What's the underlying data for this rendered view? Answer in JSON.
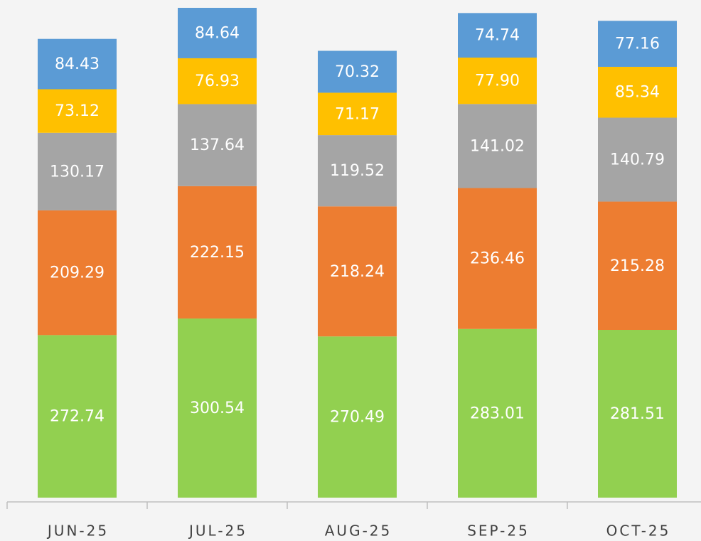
{
  "chart_data": {
    "type": "stacked_bar",
    "categories": [
      "JUN-25",
      "JUL-25",
      "AUG-25",
      "SEP-25",
      "OCT-25"
    ],
    "series": [
      {
        "color": "#92d050",
        "values": [
          272.74,
          300.54,
          270.49,
          283.01,
          281.51
        ],
        "value_labels": [
          "272.74",
          "300.54",
          "270.49",
          "283.01",
          "281.51"
        ]
      },
      {
        "color": "#ed7d31",
        "values": [
          209.29,
          222.15,
          218.24,
          236.46,
          215.28
        ],
        "value_labels": [
          "209.29",
          "222.15",
          "218.24",
          "236.46",
          "215.28"
        ]
      },
      {
        "color": "#a5a5a5",
        "values": [
          130.17,
          137.64,
          119.52,
          141.02,
          140.79
        ],
        "value_labels": [
          "130.17",
          "137.64",
          "119.52",
          "141.02",
          "140.79"
        ]
      },
      {
        "color": "#ffc000",
        "values": [
          73.12,
          76.93,
          71.17,
          77.9,
          85.34
        ],
        "value_labels": [
          "73.12",
          "76.93",
          "71.17",
          "77.90",
          "85.34"
        ]
      },
      {
        "color": "#5b9bd5",
        "values": [
          84.43,
          84.64,
          70.32,
          74.74,
          77.16
        ],
        "value_labels": [
          "84.43",
          "84.64",
          "70.32",
          "74.74",
          "77.16"
        ]
      }
    ]
  }
}
